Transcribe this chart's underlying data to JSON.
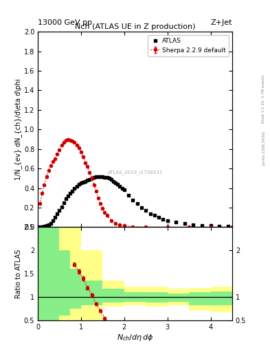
{
  "title_top": "13000 GeV pp",
  "title_right": "Z+Jet",
  "plot_title": "Nch (ATLAS UE in Z production)",
  "xlabel": "N_{ch}/d\\eta\\,d\\phi",
  "ylabel_main": "1/N_{ev} dN_{ch}/d\\eta d\\phi",
  "ylabel_ratio": "Ratio to ATLAS",
  "right_label": "Rivet 3.1.10, 3.7M events",
  "right_label2": "[arXiv:1306.3436]",
  "watermark": "ATLAS_2019_I1736531",
  "atlas_x": [
    0.05,
    0.1,
    0.15,
    0.2,
    0.25,
    0.3,
    0.35,
    0.4,
    0.45,
    0.5,
    0.55,
    0.6,
    0.65,
    0.7,
    0.75,
    0.8,
    0.85,
    0.9,
    0.95,
    1.0,
    1.05,
    1.1,
    1.15,
    1.2,
    1.25,
    1.3,
    1.35,
    1.4,
    1.45,
    1.5,
    1.55,
    1.6,
    1.65,
    1.7,
    1.75,
    1.8,
    1.85,
    1.9,
    1.95,
    2.0,
    2.1,
    2.2,
    2.3,
    2.4,
    2.5,
    2.6,
    2.7,
    2.8,
    2.9,
    3.0,
    3.2,
    3.4,
    3.6,
    3.8,
    4.0,
    4.2,
    4.4
  ],
  "atlas_y": [
    0.005,
    0.005,
    0.01,
    0.015,
    0.025,
    0.04,
    0.07,
    0.1,
    0.14,
    0.17,
    0.21,
    0.25,
    0.29,
    0.32,
    0.35,
    0.37,
    0.4,
    0.42,
    0.44,
    0.45,
    0.46,
    0.47,
    0.48,
    0.49,
    0.5,
    0.51,
    0.52,
    0.52,
    0.52,
    0.52,
    0.51,
    0.51,
    0.5,
    0.49,
    0.47,
    0.45,
    0.44,
    0.42,
    0.4,
    0.38,
    0.33,
    0.28,
    0.24,
    0.2,
    0.17,
    0.14,
    0.12,
    0.1,
    0.08,
    0.07,
    0.05,
    0.04,
    0.025,
    0.02,
    0.015,
    0.01,
    0.008
  ],
  "sherpa_x": [
    0.05,
    0.1,
    0.15,
    0.2,
    0.25,
    0.3,
    0.35,
    0.4,
    0.45,
    0.5,
    0.55,
    0.6,
    0.65,
    0.7,
    0.75,
    0.8,
    0.85,
    0.9,
    0.95,
    1.0,
    1.05,
    1.1,
    1.15,
    1.2,
    1.25,
    1.3,
    1.35,
    1.4,
    1.45,
    1.5,
    1.55,
    1.6,
    1.7,
    1.8,
    1.9,
    2.0,
    2.2,
    2.5,
    3.0,
    3.5,
    4.0,
    4.5
  ],
  "sherpa_y": [
    0.24,
    0.35,
    0.43,
    0.52,
    0.58,
    0.63,
    0.67,
    0.7,
    0.75,
    0.79,
    0.84,
    0.87,
    0.89,
    0.9,
    0.89,
    0.88,
    0.87,
    0.84,
    0.81,
    0.77,
    0.72,
    0.66,
    0.62,
    0.56,
    0.5,
    0.43,
    0.37,
    0.3,
    0.24,
    0.19,
    0.15,
    0.12,
    0.07,
    0.04,
    0.025,
    0.015,
    0.006,
    0.002,
    0.0,
    0.0,
    0.0,
    0.0
  ],
  "sherpa_yerr": [
    0.008,
    0.008,
    0.008,
    0.008,
    0.008,
    0.008,
    0.008,
    0.008,
    0.008,
    0.008,
    0.008,
    0.008,
    0.008,
    0.008,
    0.008,
    0.008,
    0.008,
    0.008,
    0.008,
    0.008,
    0.008,
    0.008,
    0.008,
    0.008,
    0.008,
    0.008,
    0.008,
    0.008,
    0.008,
    0.008,
    0.008,
    0.008,
    0.006,
    0.005,
    0.004,
    0.003,
    0.002,
    0.001,
    0.0,
    0.0,
    0.0,
    0.0
  ],
  "ratio_x": [
    0.85,
    0.95,
    1.05,
    1.15,
    1.25,
    1.35,
    1.45,
    1.55,
    1.65
  ],
  "ratio_y": [
    1.7,
    1.55,
    1.4,
    1.2,
    1.05,
    0.85,
    0.7,
    0.55,
    0.46
  ],
  "ratio_yerr": [
    0.04,
    0.04,
    0.04,
    0.04,
    0.03,
    0.03,
    0.03,
    0.03,
    0.03
  ],
  "band_yellow_bins": [
    0.0,
    0.1,
    0.2,
    0.3,
    0.5,
    0.75,
    1.0,
    1.5,
    2.0,
    2.5,
    3.0,
    3.5,
    4.0,
    4.5
  ],
  "band_yellow_low": [
    0.5,
    0.5,
    0.5,
    0.5,
    0.5,
    0.5,
    0.5,
    0.8,
    0.82,
    0.8,
    0.82,
    0.7,
    0.68,
    0.68
  ],
  "band_yellow_high": [
    2.5,
    2.5,
    2.5,
    2.5,
    2.5,
    2.5,
    2.0,
    1.35,
    1.22,
    1.22,
    1.18,
    1.2,
    1.22,
    1.22
  ],
  "band_green_bins": [
    0.0,
    0.1,
    0.2,
    0.3,
    0.5,
    0.75,
    1.0,
    1.5,
    2.0,
    2.5,
    3.0,
    3.5,
    4.0,
    4.5
  ],
  "band_green_low": [
    0.5,
    0.5,
    0.5,
    0.5,
    0.6,
    0.75,
    0.82,
    0.88,
    0.9,
    0.88,
    0.9,
    0.82,
    0.82,
    0.82
  ],
  "band_green_high": [
    2.5,
    2.5,
    2.5,
    2.5,
    2.0,
    1.6,
    1.35,
    1.18,
    1.1,
    1.1,
    1.08,
    1.1,
    1.12,
    1.12
  ],
  "xlim": [
    0,
    4.5
  ],
  "ylim_main": [
    0,
    2.0
  ],
  "ylim_ratio": [
    0.5,
    2.5
  ],
  "atlas_color": "#000000",
  "sherpa_color": "#cc0000",
  "band_yellow_color": "#ffff88",
  "band_green_color": "#88ee88",
  "background_color": "#ffffff"
}
